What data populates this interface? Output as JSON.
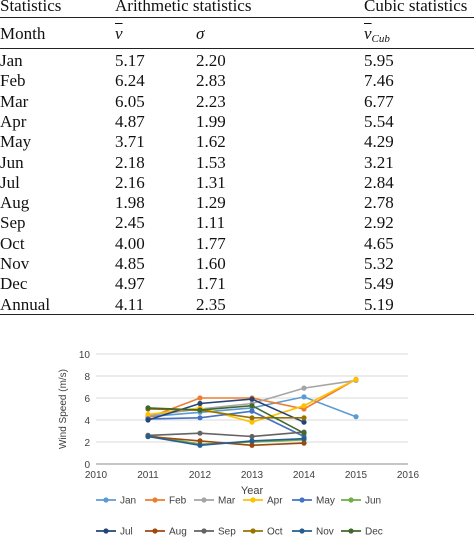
{
  "table": {
    "header": {
      "statistics": "Statistics",
      "arithmetic": "Arithmetic statistics",
      "cubic": "Cubic statistics",
      "month": "Month",
      "v_symbol": "v",
      "sigma_symbol": "σ",
      "vcub_symbol": "v",
      "vcub_sub": "Cub"
    },
    "rows": [
      {
        "month": "Jan",
        "v": "5.17",
        "sigma": "2.20",
        "vcub": "5.95"
      },
      {
        "month": "Feb",
        "v": "6.24",
        "sigma": "2.83",
        "vcub": "7.46"
      },
      {
        "month": "Mar",
        "v": "6.05",
        "sigma": "2.23",
        "vcub": "6.77"
      },
      {
        "month": "Apr",
        "v": "4.87",
        "sigma": "1.99",
        "vcub": "5.54"
      },
      {
        "month": "May",
        "v": "3.71",
        "sigma": "1.62",
        "vcub": "4.29"
      },
      {
        "month": "Jun",
        "v": "2.18",
        "sigma": "1.53",
        "vcub": "3.21"
      },
      {
        "month": "Jul",
        "v": "2.16",
        "sigma": "1.31",
        "vcub": "2.84"
      },
      {
        "month": "Aug",
        "v": "1.98",
        "sigma": "1.29",
        "vcub": "2.78"
      },
      {
        "month": "Sep",
        "v": "2.45",
        "sigma": "1.11",
        "vcub": "2.92"
      },
      {
        "month": "Oct",
        "v": "4.00",
        "sigma": "1.77",
        "vcub": "4.65"
      },
      {
        "month": "Nov",
        "v": "4.85",
        "sigma": "1.60",
        "vcub": "5.32"
      },
      {
        "month": "Dec",
        "v": "4.97",
        "sigma": "1.71",
        "vcub": "5.49"
      },
      {
        "month": "Annual",
        "v": "4.11",
        "sigma": "2.35",
        "vcub": "5.19"
      }
    ]
  },
  "chart_data": {
    "type": "line",
    "xlabel": "Year",
    "ylabel": "Wind Speed (m/s)",
    "xlim": [
      2010,
      2016
    ],
    "ylim": [
      0,
      10
    ],
    "xticks": [
      2010,
      2011,
      2012,
      2013,
      2014,
      2015,
      2016
    ],
    "yticks": [
      0,
      2,
      4,
      6,
      8,
      10
    ],
    "grid": "horizontal",
    "legend_position": "bottom",
    "series": [
      {
        "name": "Jan",
        "color": "#5b9bd5",
        "points": [
          [
            2011,
            4.3
          ],
          [
            2012,
            4.7
          ],
          [
            2013,
            5.1
          ],
          [
            2014,
            6.1
          ],
          [
            2015,
            4.3
          ]
        ]
      },
      {
        "name": "Feb",
        "color": "#ed7d31",
        "points": [
          [
            2011,
            4.2
          ],
          [
            2012,
            6.0
          ],
          [
            2013,
            6.0
          ],
          [
            2014,
            5.0
          ],
          [
            2015,
            7.7
          ]
        ]
      },
      {
        "name": "Mar",
        "color": "#a5a5a5",
        "points": [
          [
            2011,
            4.4
          ],
          [
            2012,
            5.0
          ],
          [
            2013,
            5.5
          ],
          [
            2014,
            6.9
          ],
          [
            2015,
            7.6
          ]
        ]
      },
      {
        "name": "Apr",
        "color": "#ffc000",
        "points": [
          [
            2011,
            4.5
          ],
          [
            2012,
            5.1
          ],
          [
            2013,
            3.8
          ],
          [
            2014,
            5.3
          ],
          [
            2015,
            7.7
          ]
        ]
      },
      {
        "name": "May",
        "color": "#4472c4",
        "points": [
          [
            2011,
            4.1
          ],
          [
            2012,
            4.2
          ],
          [
            2013,
            4.8
          ],
          [
            2014,
            2.5
          ]
        ]
      },
      {
        "name": "Jun",
        "color": "#70ad47",
        "points": [
          [
            2011,
            2.6
          ],
          [
            2012,
            1.8
          ],
          [
            2013,
            2.0
          ],
          [
            2014,
            2.2
          ]
        ]
      },
      {
        "name": "Jul",
        "color": "#264478",
        "points": [
          [
            2011,
            4.0
          ],
          [
            2012,
            5.5
          ],
          [
            2013,
            5.9
          ],
          [
            2014,
            3.8
          ]
        ]
      },
      {
        "name": "Aug",
        "color": "#9e480e",
        "points": [
          [
            2011,
            2.5
          ],
          [
            2012,
            2.1
          ],
          [
            2013,
            1.7
          ],
          [
            2014,
            1.9
          ]
        ]
      },
      {
        "name": "Sep",
        "color": "#636363",
        "points": [
          [
            2011,
            2.6
          ],
          [
            2012,
            2.8
          ],
          [
            2013,
            2.5
          ],
          [
            2014,
            2.9
          ]
        ]
      },
      {
        "name": "Oct",
        "color": "#997300",
        "points": [
          [
            2011,
            5.0
          ],
          [
            2012,
            4.9
          ],
          [
            2013,
            4.2
          ],
          [
            2014,
            4.2
          ]
        ]
      },
      {
        "name": "Nov",
        "color": "#255e91",
        "points": [
          [
            2011,
            2.5
          ],
          [
            2012,
            1.7
          ],
          [
            2013,
            2.1
          ],
          [
            2014,
            2.3
          ]
        ]
      },
      {
        "name": "Dec",
        "color": "#43682b",
        "points": [
          [
            2011,
            5.1
          ],
          [
            2012,
            4.9
          ],
          [
            2013,
            5.3
          ],
          [
            2014,
            2.8
          ]
        ]
      }
    ]
  }
}
